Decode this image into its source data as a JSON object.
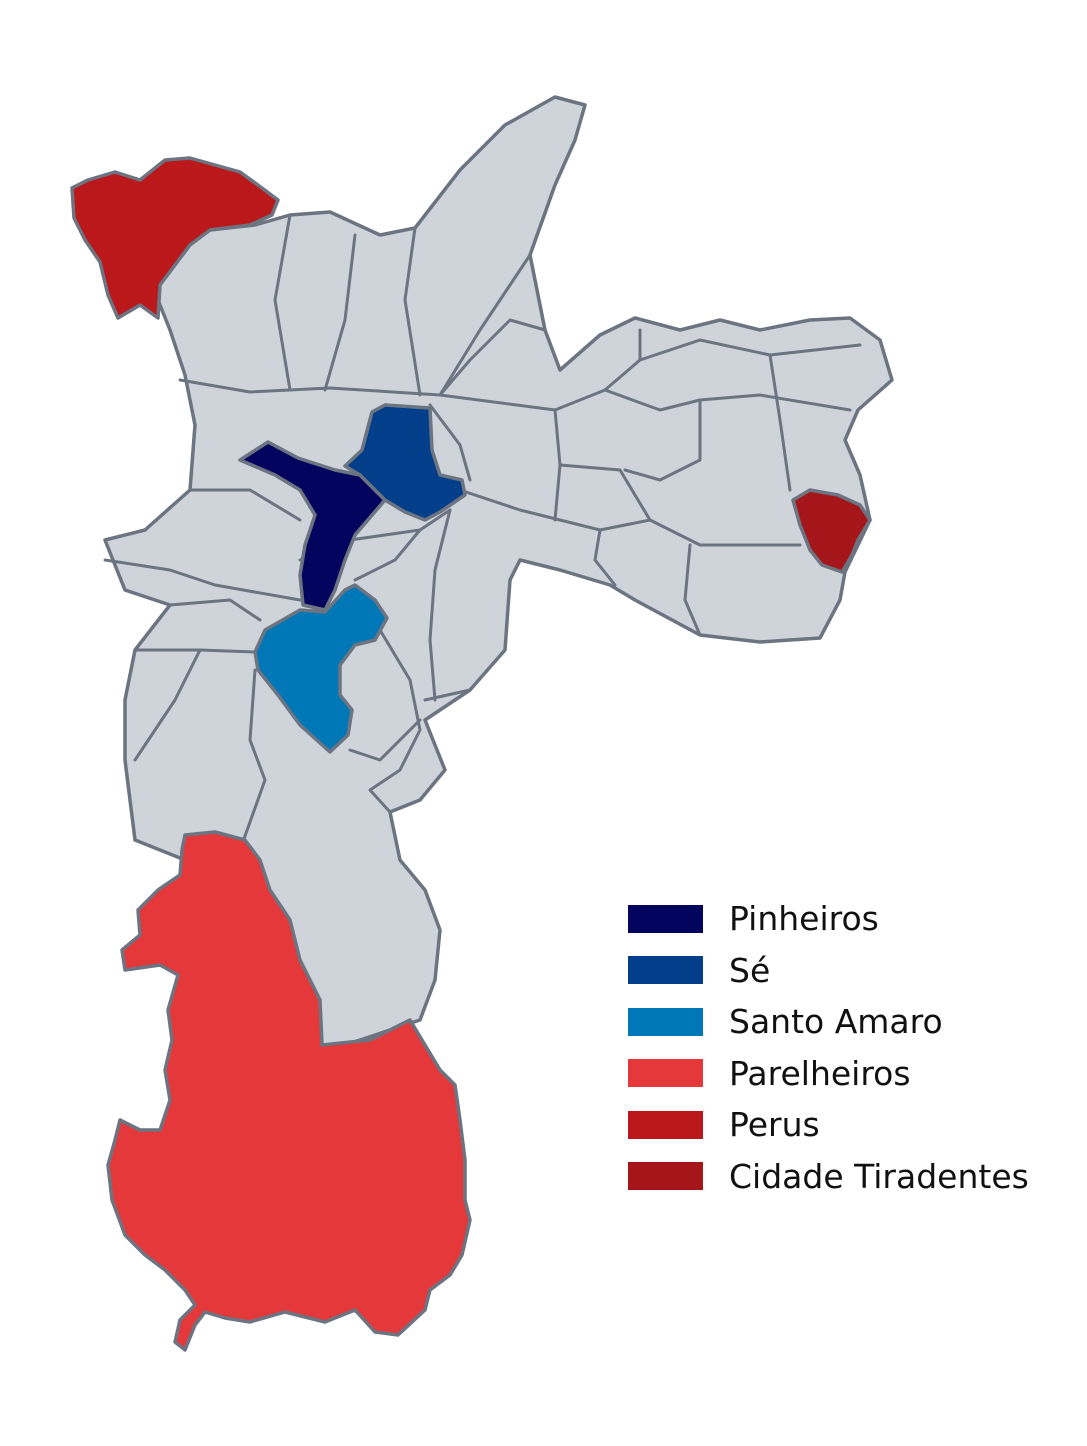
{
  "map": {
    "base_fill": "#cfd4db",
    "border_color": "#6b7480"
  },
  "legend": [
    {
      "label": "Pinheiros",
      "color": "#03045e"
    },
    {
      "label": "Sé",
      "color": "#023e8a"
    },
    {
      "label": "Santo Amaro",
      "color": "#0077b6"
    },
    {
      "label": "Parelheiros",
      "color": "#e5383b"
    },
    {
      "label": "Perus",
      "color": "#ba181b"
    },
    {
      "label": "Cidade Tiradentes",
      "color": "#a4161a"
    }
  ]
}
